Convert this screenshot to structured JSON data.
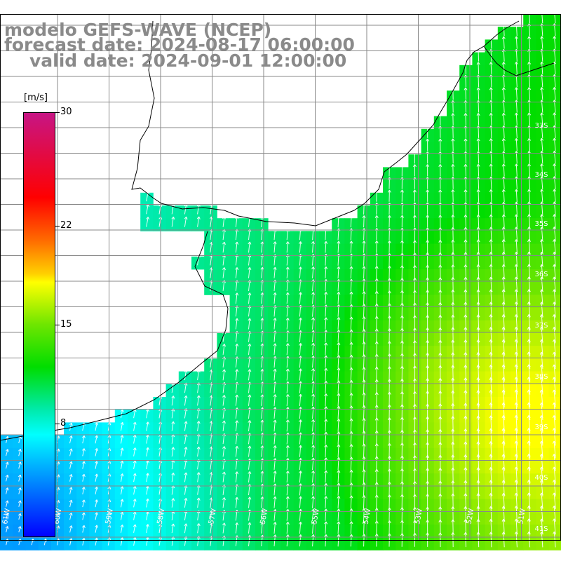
{
  "header": {
    "line1": "modelo GEFS-WAVE (NCEP)",
    "line2": "forecast date: 2024-08-17 06:00:00",
    "line3": "valid date: 2024-09-01 12:00:00"
  },
  "colorbar": {
    "unit": "[m/s]",
    "min": 0,
    "max": 30,
    "ticks": [
      {
        "value": 30,
        "label": "30"
      },
      {
        "value": 22,
        "label": "22"
      },
      {
        "value": 15,
        "label": "15"
      },
      {
        "value": 8,
        "label": "8"
      }
    ]
  },
  "map": {
    "lat_labels": [
      {
        "lat": -33,
        "label": "33S"
      },
      {
        "lat": -34,
        "label": "34S"
      },
      {
        "lat": -35,
        "label": "35S"
      },
      {
        "lat": -36,
        "label": "36S"
      },
      {
        "lat": -37,
        "label": "37S"
      },
      {
        "lat": -38,
        "label": "38S"
      },
      {
        "lat": -39,
        "label": "39S"
      },
      {
        "lat": -40,
        "label": "40S"
      },
      {
        "lat": -41,
        "label": "41S"
      }
    ],
    "lon_labels": [
      {
        "lon": -61,
        "label": "61W"
      },
      {
        "lon": -60,
        "label": "60W"
      },
      {
        "lon": -59,
        "label": "59W"
      },
      {
        "lon": -58,
        "label": "58W"
      },
      {
        "lon": -57,
        "label": "57W"
      },
      {
        "lon": -56,
        "label": "56W"
      },
      {
        "lon": -55,
        "label": "55W"
      },
      {
        "lon": -54,
        "label": "54W"
      },
      {
        "lon": -53,
        "label": "53W"
      },
      {
        "lon": -52,
        "label": "52W"
      },
      {
        "lon": -51,
        "label": "51W"
      }
    ],
    "colors": {
      "grid": "#888888",
      "coast": "#000000",
      "arrow": "#ffffff",
      "title": "#8a8a8a"
    },
    "arrow_direction": "wind blowing toward north-northeast"
  }
}
